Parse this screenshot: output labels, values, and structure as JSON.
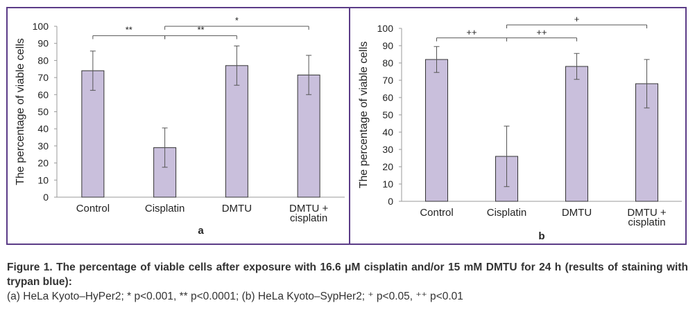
{
  "colors": {
    "frame": "#5b3b87",
    "bar_fill": "#c9bfdc",
    "bar_stroke": "#333333",
    "axis": "#999999"
  },
  "chart_data": [
    {
      "type": "bar",
      "panel_label": "a",
      "ylabel": "The percentage of viable cells",
      "ylim": [
        0,
        100
      ],
      "yticks": [
        0,
        10,
        20,
        30,
        40,
        50,
        60,
        70,
        80,
        90,
        100
      ],
      "categories": [
        "Control",
        "Cisplatin",
        "DMTU",
        "DMTU +\ncisplatin"
      ],
      "values": [
        74,
        29,
        77,
        71.5
      ],
      "error": [
        11.5,
        11.5,
        11.5,
        11.5
      ],
      "grid": false,
      "significance": [
        {
          "from": 0,
          "to": 1,
          "label": "**",
          "level": 94.5
        },
        {
          "from": 1,
          "to": 2,
          "label": "**",
          "level": 94.5
        },
        {
          "from": 1,
          "to": 3,
          "label": "*",
          "level": 100
        }
      ]
    },
    {
      "type": "bar",
      "panel_label": "b",
      "ylabel": "The percentage of viable cells",
      "ylim": [
        0,
        100
      ],
      "yticks": [
        0,
        10,
        20,
        30,
        40,
        50,
        60,
        70,
        80,
        90,
        100
      ],
      "categories": [
        "Control",
        "Cisplatin",
        "DMTU",
        "DMTU +\ncisplatin"
      ],
      "values": [
        82,
        26,
        78,
        68
      ],
      "error": [
        7.5,
        17.5,
        7.5,
        14
      ],
      "grid": false,
      "significance": [
        {
          "from": 0,
          "to": 1,
          "label": "++",
          "level": 94.5
        },
        {
          "from": 1,
          "to": 2,
          "label": "++",
          "level": 94.5
        },
        {
          "from": 1,
          "to": 3,
          "label": "+",
          "level": 102
        }
      ]
    }
  ],
  "caption": {
    "title": "Figure 1. The percentage of viable cells after exposure with 16.6 μM cisplatin and/or 15 mM DMTU for 24 h (results of staining with trypan blue):",
    "subtitle": "(a) HeLa Kyoto–HyPer2; * p<0.001, ** p<0.0001; (b) HeLa Kyoto–SypHer2; ⁺ p<0.05, ⁺⁺ p<0.01"
  }
}
